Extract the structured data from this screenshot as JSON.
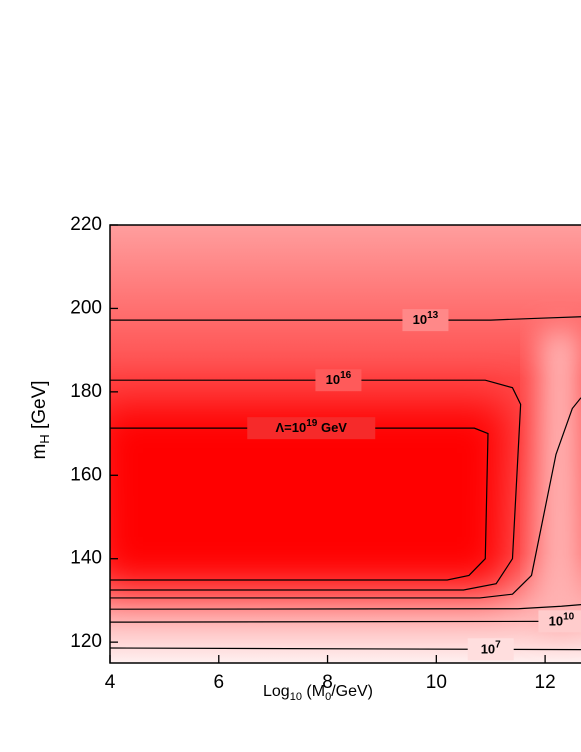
{
  "chart_data": {
    "type": "contour",
    "x_label": {
      "base": "Log",
      "sub": "10",
      "mid": " (M",
      "sub2": "0",
      "end": "/GeV)"
    },
    "y_label": {
      "base": "m",
      "sub": "H",
      "end": " [GeV]"
    },
    "xlim": [
      4,
      12.66
    ],
    "ylim": [
      115,
      220
    ],
    "xticks": [
      4,
      6,
      8,
      10,
      12
    ],
    "yticks": [
      120,
      140,
      160,
      180,
      200,
      220
    ],
    "line_color": "#000000",
    "series": [
      {
        "label": {
          "base": "Λ=10",
          "exp": "19",
          "end": " GeV"
        },
        "x": [
          4,
          10.7,
          10.95,
          10.9,
          10.6,
          10.2,
          4
        ],
        "values": [
          171.3,
          171.3,
          170,
          140,
          136,
          134.9,
          134.9
        ]
      },
      {
        "label": {
          "base": "10",
          "exp": "16"
        },
        "x": [
          4,
          10.9,
          11.4,
          11.55,
          11.4,
          11.1,
          10.5,
          4
        ],
        "values": [
          182.8,
          182.8,
          181,
          177,
          140,
          134,
          132.5,
          132.5
        ]
      },
      {
        "label": {
          "base": "10",
          "exp": "13"
        },
        "x": [
          4,
          11,
          11.8,
          12.66
        ],
        "values": [
          197.2,
          197.2,
          197.6,
          198
        ]
      },
      {
        "x": [
          4,
          10.8,
          11.4,
          11.75,
          12.2,
          12.5,
          12.66
        ],
        "values": [
          130.6,
          130.6,
          131.5,
          136,
          165,
          176,
          178.6
        ]
      },
      {
        "x": [
          4,
          11.5,
          12.3,
          12.66
        ],
        "values": [
          127.9,
          128,
          128.6,
          129
        ]
      },
      {
        "label": {
          "base": "10",
          "exp": "10"
        },
        "x": [
          4,
          12.66
        ],
        "values": [
          124.8,
          125
        ]
      },
      {
        "label": {
          "base": "10",
          "exp": "7"
        },
        "x": [
          4,
          12.66
        ],
        "values": [
          118.6,
          118.2
        ]
      }
    ]
  }
}
